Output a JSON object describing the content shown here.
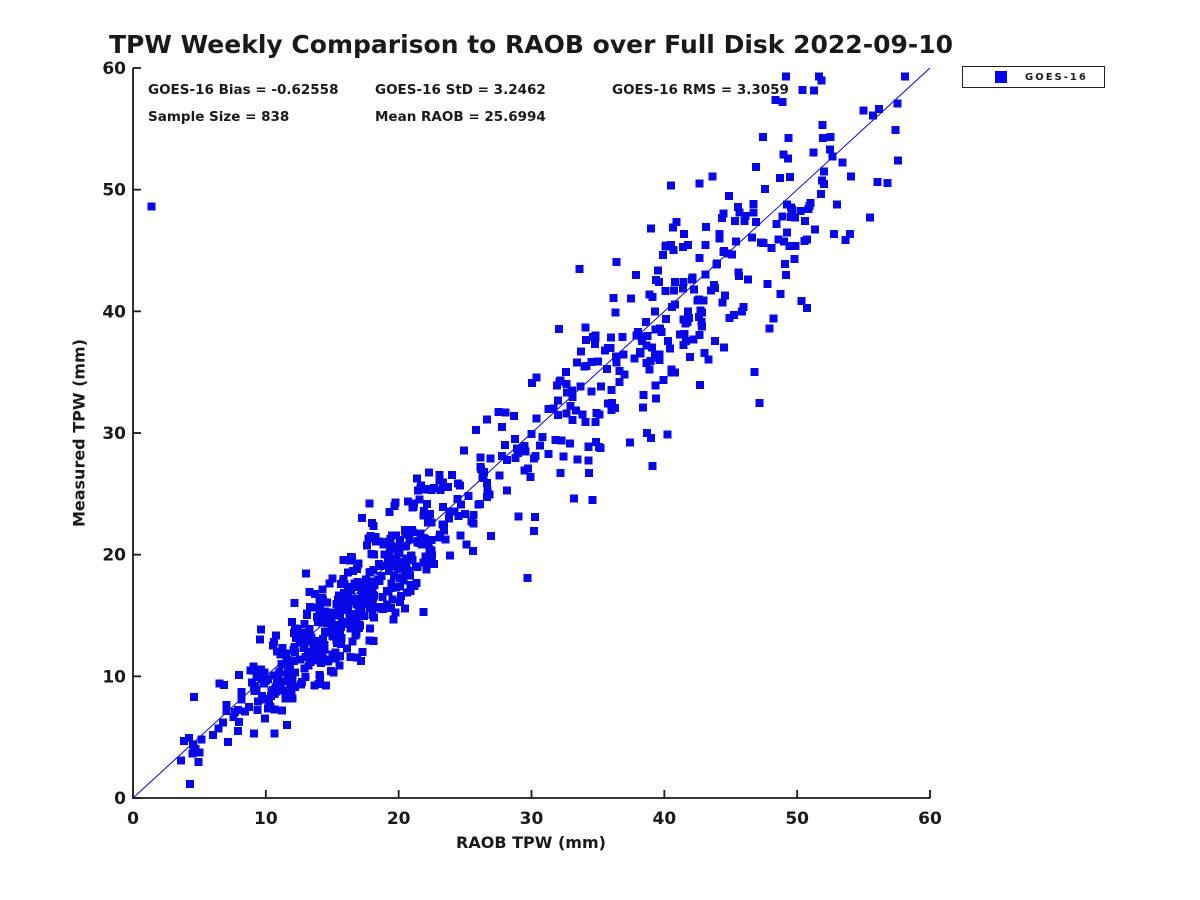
{
  "figure": {
    "background": "#ffffff",
    "text_color": "#1a1a1a",
    "axis_color": "#1a1a1a"
  },
  "chart_data": {
    "type": "scatter",
    "title": "TPW Weekly Comparison to RAOB over Full Disk 2022-09-10",
    "xlabel": "RAOB TPW (mm)",
    "ylabel": "Measured TPW (mm)",
    "xlim": [
      0,
      60
    ],
    "ylim": [
      0,
      60
    ],
    "xticks": [
      0,
      10,
      20,
      30,
      40,
      50,
      60
    ],
    "yticks": [
      0,
      10,
      20,
      30,
      40,
      50,
      60
    ],
    "grid": false,
    "annotations": {
      "bias": "GOES-16 Bias = -0.62558",
      "std": "GOES-16 StD = 3.2462",
      "rms": "GOES-16 RMS = 3.3059",
      "sample": "Sample Size = 838",
      "mean_raob": "Mean RAOB = 25.6994"
    },
    "stats": {
      "bias": -0.62558,
      "std": 3.2462,
      "rms": 3.3059,
      "sample_size": 838,
      "mean_raob": 25.6994
    },
    "legend": {
      "position": "top-right-outside",
      "entries": [
        {
          "label": "GOES-16",
          "marker": "square",
          "color": "#0404ee"
        }
      ]
    },
    "identity_line": {
      "from": [
        0,
        0
      ],
      "to": [
        60,
        60
      ],
      "color": "#0404ee",
      "width": 1
    },
    "series": [
      {
        "name": "GOES-16",
        "marker": {
          "shape": "square",
          "size": 8,
          "color": "#0707e8"
        },
        "n_points": 838,
        "notable_points": [
          [
            1.4,
            48.6
          ],
          [
            29.7,
            18.1
          ],
          [
            34.6,
            24.5
          ],
          [
            39.1,
            27.3
          ],
          [
            50.4,
            58.2
          ],
          [
            48.9,
            57.2
          ],
          [
            17.8,
            24.2
          ],
          [
            4.6,
            8.3
          ],
          [
            57.4,
            54.9
          ],
          [
            57.6,
            52.4
          ],
          [
            3.6,
            3.1
          ],
          [
            46.8,
            35.0
          ]
        ],
        "generator": {
          "seed": 20220910,
          "components": [
            {
              "weight": 0.6,
              "mu": 16.5,
              "sigma": 5.3
            },
            {
              "weight": 0.4,
              "mu": 40.0,
              "sigma": 8.6
            }
          ],
          "x_clip": [
            2.2,
            58.2
          ],
          "bias": -0.62558,
          "noise_base": 1.0,
          "noise_slope": 0.07,
          "y_clip": [
            0.5,
            59.3
          ]
        }
      }
    ]
  }
}
